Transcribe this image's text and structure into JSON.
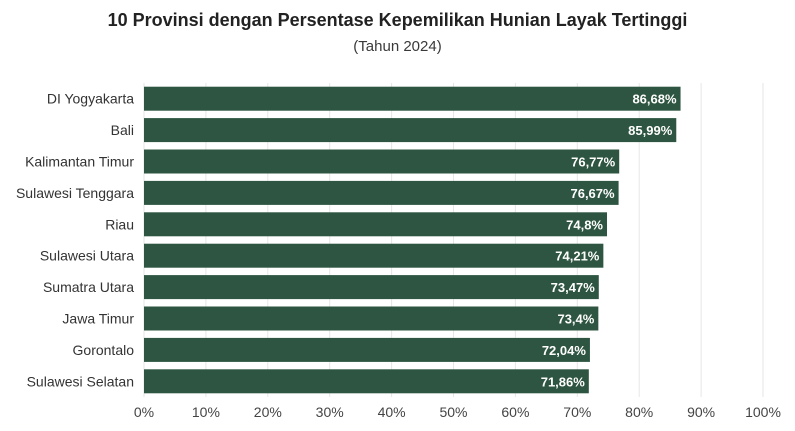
{
  "chart_data": {
    "type": "bar",
    "orientation": "horizontal",
    "title": "10 Provinsi dengan Persentase Kepemilikan Hunian Layak Tertinggi",
    "subtitle": "(Tahun 2024)",
    "categories": [
      "DI Yogyakarta",
      "Bali",
      "Kalimantan Timur",
      "Sulawesi Tenggara",
      "Riau",
      "Sulawesi Utara",
      "Sumatra Utara",
      "Jawa Timur",
      "Gorontalo",
      "Sulawesi Selatan"
    ],
    "values": [
      86.68,
      85.99,
      76.77,
      76.67,
      74.8,
      74.21,
      73.47,
      73.4,
      72.04,
      71.86
    ],
    "value_labels": [
      "86,68%",
      "85,99%",
      "76,77%",
      "76,67%",
      "74,8%",
      "74,21%",
      "73,47%",
      "73,4%",
      "72,04%",
      "71,86%"
    ],
    "xlim": [
      0,
      100
    ],
    "xticks": [
      0,
      10,
      20,
      30,
      40,
      50,
      60,
      70,
      80,
      90,
      100
    ],
    "xtick_labels": [
      "0%",
      "10%",
      "20%",
      "30%",
      "40%",
      "50%",
      "60%",
      "70%",
      "80%",
      "90%",
      "100%"
    ],
    "xlabel": "",
    "ylabel": "",
    "grid": true,
    "bar_color": "#2e5541",
    "grid_color": "#e6e6e6"
  }
}
